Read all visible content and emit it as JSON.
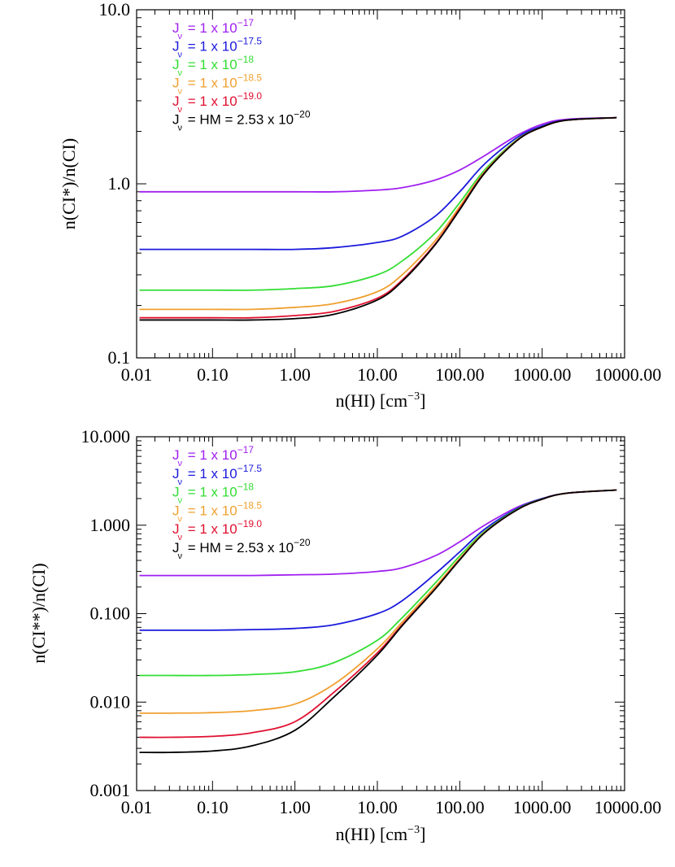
{
  "chart_data": [
    {
      "type": "line",
      "xscale": "log",
      "yscale": "log",
      "xlabel": "n(HI) [cm",
      "xlabel_sup": "−3",
      "xlabel_end": "]",
      "ylabel": "n(CI*)/n(CI)",
      "xlim": [
        0.012,
        10000
      ],
      "ylim": [
        0.1,
        10
      ],
      "xticks": [
        0.01,
        0.1,
        1,
        10,
        100,
        1000,
        10000
      ],
      "xtick_labels": [
        "0.01",
        "0.10",
        "1.00",
        "10.00",
        "100.00",
        "1000.00",
        "10000.00"
      ],
      "yticks": [
        0.1,
        1,
        10
      ],
      "ytick_labels": [
        "0.1",
        "1.0",
        "10.0"
      ],
      "x": [
        0.013,
        0.03,
        0.1,
        0.3,
        1,
        3,
        10,
        20,
        50,
        100,
        200,
        500,
        1000,
        2000,
        8000
      ],
      "series": [
        {
          "name": "J_v = 1 x 10^-17",
          "color": "#a020f0",
          "values": [
            0.9,
            0.9,
            0.9,
            0.9,
            0.9,
            0.9,
            0.92,
            0.95,
            1.05,
            1.2,
            1.45,
            1.9,
            2.2,
            2.35,
            2.4
          ]
        },
        {
          "name": "J_v = 1 x 10^-17.5",
          "color": "#1a1adc",
          "values": [
            0.42,
            0.42,
            0.42,
            0.42,
            0.42,
            0.43,
            0.46,
            0.5,
            0.65,
            0.9,
            1.3,
            1.85,
            2.15,
            2.33,
            2.4
          ]
        },
        {
          "name": "J_v = 1 x 10^-18",
          "color": "#33dd33",
          "values": [
            0.245,
            0.245,
            0.245,
            0.245,
            0.25,
            0.26,
            0.3,
            0.36,
            0.52,
            0.78,
            1.2,
            1.8,
            2.12,
            2.32,
            2.4
          ]
        },
        {
          "name": "J_v = 1 x 10^-18.5",
          "color": "#f0a030",
          "values": [
            0.19,
            0.19,
            0.19,
            0.19,
            0.195,
            0.205,
            0.24,
            0.3,
            0.47,
            0.74,
            1.17,
            1.79,
            2.12,
            2.32,
            2.4
          ]
        },
        {
          "name": "J_v = 1 x 10^-19.0",
          "color": "#e01030",
          "values": [
            0.17,
            0.17,
            0.17,
            0.17,
            0.175,
            0.185,
            0.22,
            0.28,
            0.45,
            0.72,
            1.16,
            1.78,
            2.12,
            2.32,
            2.4
          ]
        },
        {
          "name": "J_v = HM = 2.53 x 10^-20",
          "color": "#000000",
          "values": [
            0.165,
            0.165,
            0.165,
            0.165,
            0.168,
            0.178,
            0.215,
            0.275,
            0.445,
            0.71,
            1.15,
            1.78,
            2.12,
            2.32,
            2.4
          ]
        }
      ],
      "legend": [
        {
          "text": "= 1 x 10",
          "sup": "−17",
          "color": "#a020f0"
        },
        {
          "text": "= 1 x 10",
          "sup": "−17.5",
          "color": "#1a1adc"
        },
        {
          "text": "= 1 x 10",
          "sup": "−18",
          "color": "#33dd33"
        },
        {
          "text": "= 1 x 10",
          "sup": "−18.5",
          "color": "#f0a030"
        },
        {
          "text": "= 1 x 10",
          "sup": "−19.0",
          "color": "#e01030"
        },
        {
          "text": "= HM = 2.53 x 10",
          "sup": "−20",
          "color": "#000000"
        }
      ],
      "legend_symbol": "J",
      "legend_subscript": "ν",
      "legend_position": "top-left"
    },
    {
      "type": "line",
      "xscale": "log",
      "yscale": "log",
      "xlabel": "n(HI) [cm",
      "xlabel_sup": "−3",
      "xlabel_end": "]",
      "ylabel": "n(CI**)/n(CI)",
      "xlim": [
        0.012,
        10000
      ],
      "ylim": [
        0.001,
        10
      ],
      "xticks": [
        0.01,
        0.1,
        1,
        10,
        100,
        1000,
        10000
      ],
      "xtick_labels": [
        "0.01",
        "0.10",
        "1.00",
        "10.00",
        "100.00",
        "1000.00",
        "10000.00"
      ],
      "yticks": [
        0.001,
        0.01,
        0.1,
        1,
        10
      ],
      "ytick_labels": [
        "0.001",
        "0.010",
        "0.100",
        "1.000",
        "10.000"
      ],
      "x": [
        0.013,
        0.03,
        0.1,
        0.3,
        1,
        3,
        10,
        20,
        50,
        100,
        200,
        500,
        1000,
        2000,
        8000
      ],
      "series": [
        {
          "name": "J_v = 1 x 10^-17",
          "color": "#a020f0",
          "values": [
            0.27,
            0.27,
            0.27,
            0.27,
            0.275,
            0.28,
            0.3,
            0.33,
            0.45,
            0.65,
            1.0,
            1.6,
            2.0,
            2.3,
            2.5
          ]
        },
        {
          "name": "J_v = 1 x 10^-17.5",
          "color": "#1a1adc",
          "values": [
            0.065,
            0.065,
            0.065,
            0.066,
            0.068,
            0.075,
            0.1,
            0.14,
            0.28,
            0.5,
            0.9,
            1.55,
            2.0,
            2.3,
            2.5
          ]
        },
        {
          "name": "J_v = 1 x 10^-18",
          "color": "#33dd33",
          "values": [
            0.02,
            0.02,
            0.02,
            0.0205,
            0.022,
            0.028,
            0.05,
            0.09,
            0.22,
            0.45,
            0.85,
            1.52,
            1.98,
            2.3,
            2.5
          ]
        },
        {
          "name": "J_v = 1 x 10^-18.5",
          "color": "#f0a030",
          "values": [
            0.0075,
            0.0075,
            0.0076,
            0.008,
            0.0095,
            0.016,
            0.04,
            0.08,
            0.2,
            0.42,
            0.83,
            1.5,
            1.97,
            2.3,
            2.5
          ]
        },
        {
          "name": "J_v = 1 x 10^-19.0",
          "color": "#e01030",
          "values": [
            0.004,
            0.004,
            0.0041,
            0.0045,
            0.006,
            0.013,
            0.036,
            0.075,
            0.19,
            0.41,
            0.82,
            1.5,
            1.97,
            2.3,
            2.5
          ]
        },
        {
          "name": "J_v = HM = 2.53 x 10^-20",
          "color": "#000000",
          "values": [
            0.0027,
            0.0027,
            0.0028,
            0.0032,
            0.0048,
            0.0115,
            0.034,
            0.073,
            0.188,
            0.405,
            0.82,
            1.5,
            1.97,
            2.3,
            2.5
          ]
        }
      ],
      "legend": [
        {
          "text": "= 1 x 10",
          "sup": "−17",
          "color": "#a020f0"
        },
        {
          "text": "= 1 x 10",
          "sup": "−17.5",
          "color": "#1a1adc"
        },
        {
          "text": "= 1 x 10",
          "sup": "−18",
          "color": "#33dd33"
        },
        {
          "text": "= 1 x 10",
          "sup": "−18.5",
          "color": "#f0a030"
        },
        {
          "text": "= 1 x 10",
          "sup": "−19.0",
          "color": "#e01030"
        },
        {
          "text": "= HM = 2.53 x 10",
          "sup": "−20",
          "color": "#000000"
        }
      ],
      "legend_symbol": "J",
      "legend_subscript": "ν",
      "legend_position": "top-left"
    }
  ]
}
